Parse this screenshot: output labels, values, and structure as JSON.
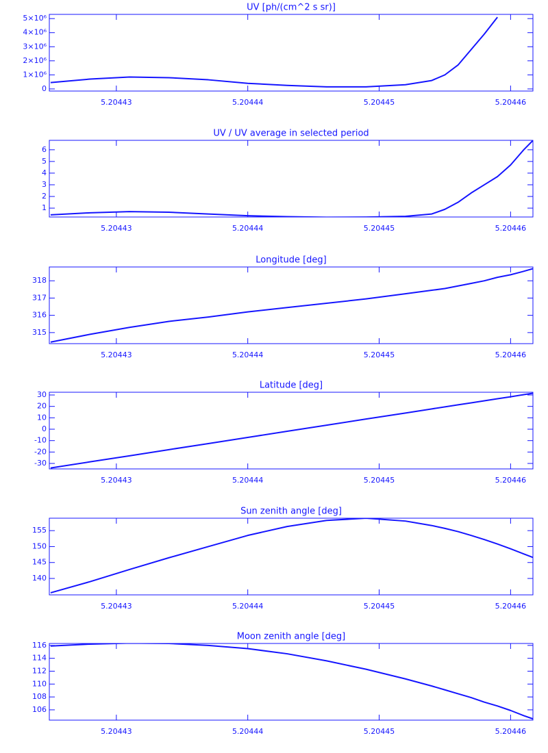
{
  "chart_data": [
    {
      "type": "line",
      "title": "UV [ph/(cm^2 s sr)]",
      "color": "#1414ff",
      "x": [
        5.204425,
        5.204428,
        5.204431,
        5.204434,
        5.204437,
        5.20444,
        5.204443,
        5.204446,
        5.204449,
        5.204452,
        5.204454,
        5.204455,
        5.204456,
        5.204457,
        5.204458,
        5.204459
      ],
      "values": [
        450000,
        700000,
        850000,
        800000,
        650000,
        400000,
        250000,
        150000,
        150000,
        300000,
        600000,
        1000000,
        1700000,
        2800000,
        3900000,
        5100000
      ],
      "xlim": [
        5.2044249,
        5.2044617
      ],
      "xticks": [
        5.20443,
        5.20444,
        5.20445,
        5.20446
      ],
      "ylim": [
        -150000,
        5300000
      ],
      "yticks": [
        0,
        {
          "value": 1000000,
          "label": "1×10⁶"
        },
        {
          "value": 2000000,
          "label": "2×10⁶"
        },
        {
          "value": 3000000,
          "label": "3×10⁶"
        },
        {
          "value": 4000000,
          "label": "4×10⁶"
        },
        {
          "value": 5000000,
          "label": "5×10⁶"
        }
      ]
    },
    {
      "type": "line",
      "title": "UV / UV average in selected period",
      "color": "#1414ff",
      "x": [
        5.204425,
        5.204428,
        5.204431,
        5.204434,
        5.204437,
        5.20444,
        5.204443,
        5.204446,
        5.204449,
        5.204452,
        5.204454,
        5.204455,
        5.204456,
        5.204457,
        5.204458,
        5.204459,
        5.20446,
        5.204461,
        5.2044617
      ],
      "values": [
        0.42,
        0.6,
        0.7,
        0.65,
        0.5,
        0.35,
        0.27,
        0.22,
        0.23,
        0.3,
        0.5,
        0.9,
        1.5,
        2.3,
        3.0,
        3.7,
        4.7,
        6.0,
        6.8
      ],
      "xlim": [
        5.2044249,
        5.2044617
      ],
      "xticks": [
        5.20443,
        5.20444,
        5.20445,
        5.20446
      ],
      "ylim": [
        0.24,
        6.81
      ],
      "yticks": [
        1,
        2,
        3,
        4,
        5,
        6
      ]
    },
    {
      "type": "line",
      "title": "Longitude [deg]",
      "color": "#1414ff",
      "x": [
        5.204425,
        5.204428,
        5.204431,
        5.204434,
        5.204437,
        5.20444,
        5.204443,
        5.204446,
        5.204449,
        5.204452,
        5.204454,
        5.204455,
        5.204456,
        5.204457,
        5.204458,
        5.204459,
        5.20446,
        5.204461,
        5.2044617
      ],
      "values": [
        314.45,
        314.9,
        315.3,
        315.65,
        315.9,
        316.2,
        316.45,
        316.7,
        316.95,
        317.25,
        317.45,
        317.55,
        317.7,
        317.85,
        318.0,
        318.2,
        318.35,
        318.55,
        318.7
      ],
      "xlim": [
        5.2044249,
        5.2044617
      ],
      "xticks": [
        5.20443,
        5.20444,
        5.20445,
        5.20446
      ],
      "ylim": [
        314.36,
        318.8
      ],
      "yticks": [
        315,
        316,
        317,
        318
      ]
    },
    {
      "type": "line",
      "title": "Latitude [deg]",
      "color": "#1414ff",
      "x": [
        5.204425,
        5.204428,
        5.204431,
        5.204434,
        5.204437,
        5.20444,
        5.204443,
        5.204446,
        5.204449,
        5.204452,
        5.204454,
        5.204455,
        5.204456,
        5.204457,
        5.204458,
        5.204459,
        5.20446,
        5.204461,
        5.2044617
      ],
      "values": [
        -34,
        -28.6,
        -23.3,
        -17.9,
        -12.6,
        -7.2,
        -1.8,
        3.5,
        8.9,
        14.2,
        17.8,
        19.6,
        21.4,
        23.1,
        24.9,
        26.7,
        28.4,
        30.3,
        31.5
      ],
      "xlim": [
        5.2044249,
        5.2044617
      ],
      "xticks": [
        5.20443,
        5.20444,
        5.20445,
        5.20446
      ],
      "ylim": [
        -34.8,
        32.4
      ],
      "yticks": [
        -30,
        -20,
        -10,
        0,
        10,
        20,
        30
      ]
    },
    {
      "type": "line",
      "title": "Sun zenith angle [deg]",
      "color": "#1414ff",
      "x": [
        5.204425,
        5.204428,
        5.204431,
        5.204434,
        5.204437,
        5.20444,
        5.204443,
        5.204446,
        5.204449,
        5.204452,
        5.204454,
        5.204455,
        5.204456,
        5.204457,
        5.204458,
        5.204459,
        5.20446,
        5.204461,
        5.2044617
      ],
      "values": [
        135.5,
        139,
        142.8,
        146.5,
        150,
        153.5,
        156.3,
        158.2,
        158.9,
        158,
        156.6,
        155.7,
        154.7,
        153.5,
        152.2,
        150.8,
        149.3,
        147.7,
        146.6
      ],
      "xlim": [
        5.2044249,
        5.2044617
      ],
      "xticks": [
        5.20443,
        5.20444,
        5.20445,
        5.20446
      ],
      "ylim": [
        134.85,
        158.9
      ],
      "yticks": [
        140,
        145,
        150,
        155
      ]
    },
    {
      "type": "line",
      "title": "Moon zenith angle [deg]",
      "color": "#1414ff",
      "x": [
        5.204425,
        5.204428,
        5.204431,
        5.204434,
        5.204437,
        5.20444,
        5.204443,
        5.204446,
        5.204449,
        5.204452,
        5.204454,
        5.204455,
        5.204456,
        5.204457,
        5.204458,
        5.204459,
        5.20446,
        5.204461,
        5.2044617
      ],
      "values": [
        115.9,
        116.2,
        116.35,
        116.3,
        116.0,
        115.5,
        114.7,
        113.6,
        112.3,
        110.8,
        109.7,
        109.1,
        108.5,
        107.9,
        107.2,
        106.6,
        105.9,
        105.1,
        104.6
      ],
      "xlim": [
        5.2044249,
        5.2044617
      ],
      "xticks": [
        5.20443,
        5.20444,
        5.20445,
        5.20446
      ],
      "ylim": [
        104.4,
        116.3
      ],
      "yticks": [
        106,
        108,
        110,
        112,
        114,
        116
      ]
    }
  ]
}
